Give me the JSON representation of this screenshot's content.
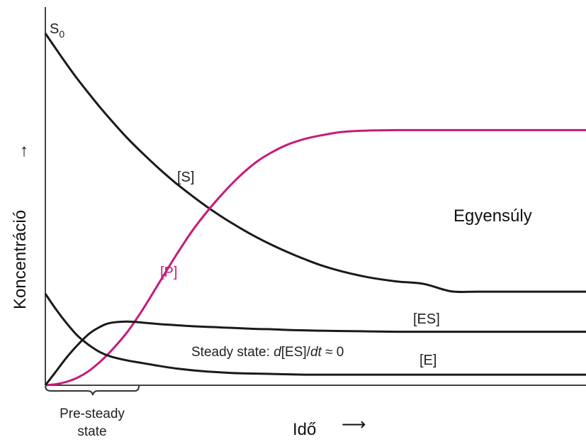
{
  "chart_data": {
    "type": "line",
    "xlabel": "Idő",
    "ylabel": "Koncentráció",
    "x_arrow": "⟶",
    "y_arrow": "↑",
    "s0_label": {
      "main": "S",
      "sub": "0"
    },
    "grid": false,
    "legend": "none",
    "xlim": [
      0,
      100
    ],
    "ylim": [
      0,
      100
    ],
    "x": [
      0,
      2,
      4,
      6,
      8,
      10,
      12,
      15,
      18,
      21,
      24,
      27,
      30,
      33,
      36,
      39,
      42,
      45,
      48,
      51,
      55,
      60,
      65,
      70,
      75,
      80,
      85,
      90,
      95,
      100
    ],
    "series": [
      {
        "name": "[S]",
        "color": "#1a1a1a",
        "values": [
          100,
          95.5,
          91.1,
          86.9,
          83.0,
          79.2,
          75.6,
          70.5,
          65.9,
          61.6,
          57.6,
          54.0,
          50.6,
          47.5,
          44.7,
          42.1,
          39.8,
          37.7,
          35.8,
          34.1,
          32.3,
          30.6,
          29.5,
          28.8,
          26.7,
          26.6,
          26.6,
          26.6,
          26.6,
          26.6
        ]
      },
      {
        "name": "[P]",
        "color": "#c41c7a",
        "values": [
          0,
          0.3,
          1.0,
          2.2,
          4.0,
          6.5,
          9.5,
          14.8,
          21.5,
          29.0,
          36.5,
          43.5,
          49.5,
          54.8,
          59.5,
          63.4,
          66.3,
          68.5,
          70.0,
          71.0,
          72.0,
          72.4,
          72.5,
          72.5,
          72.5,
          72.5,
          72.5,
          72.5,
          72.5,
          72.5
        ]
      },
      {
        "name": "[ES]",
        "color": "#1a1a1a",
        "values": [
          0,
          4.0,
          8.0,
          11.5,
          14.5,
          16.5,
          17.7,
          18.1,
          17.8,
          17.4,
          17.1,
          16.8,
          16.6,
          16.4,
          16.2,
          16.0,
          15.9,
          15.7,
          15.6,
          15.5,
          15.4,
          15.3,
          15.2,
          15.2,
          15.2,
          15.2,
          15.2,
          15.2,
          15.2,
          15.2
        ]
      },
      {
        "name": "[E]",
        "color": "#1a1a1a",
        "values": [
          26.0,
          21.5,
          17.5,
          14.0,
          11.5,
          9.5,
          8.2,
          7.1,
          6.3,
          5.5,
          4.8,
          4.3,
          3.9,
          3.6,
          3.4,
          3.3,
          3.2,
          3.1,
          3.0,
          3.0,
          3.0,
          3.0,
          3.0,
          3.0,
          3.0,
          3.0,
          3.0,
          3.0,
          3.0,
          3.0
        ]
      }
    ],
    "annotations": {
      "steady_state": {
        "pre": "Steady state: ",
        "d": "d",
        "mid": "[ES]/",
        "dt": "dt",
        "post": " ≈ 0"
      },
      "equilibrium": "Egyensúly",
      "pre_steady": {
        "line1": "Pre-steady",
        "line2": "state",
        "x_range": [
          0,
          17
        ]
      }
    }
  }
}
